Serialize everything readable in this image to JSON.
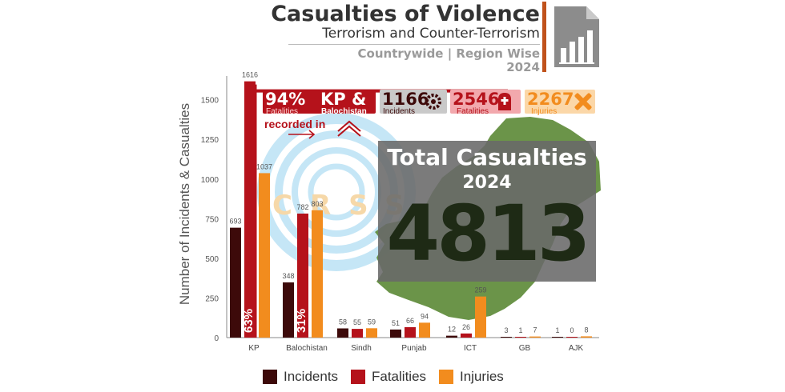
{
  "header": {
    "title": "Casualties of Violence",
    "subtitle": "Terrorism and Counter-Terrorism",
    "scope": "Countrywide | Region Wise",
    "year": "2024"
  },
  "colors": {
    "incidents": "#3d0a0a",
    "fatalities": "#b5121b",
    "injuries": "#f28c1e",
    "accent": "#c0521b",
    "map": "#5e8b3a",
    "watermark": "#7ec8ea"
  },
  "watermark_text": "CRSS",
  "highlights": {
    "share": {
      "value": "94%",
      "label": "Fatalities",
      "regions": "KP &",
      "regions2": "Balochistan",
      "note": "recorded in"
    },
    "incidents": {
      "value": "1166",
      "label": "Incidents"
    },
    "fatalities": {
      "value": "2546",
      "label": "Fatalities"
    },
    "injuries": {
      "value": "2267",
      "label": "Injuries"
    }
  },
  "total": {
    "title": "Total Casualties",
    "year": "2024",
    "value": "4813"
  },
  "chart_data": {
    "type": "bar",
    "categories": [
      "KP",
      "Balochistan",
      "Sindh",
      "Punjab",
      "ICT",
      "GB",
      "AJK"
    ],
    "series": [
      {
        "name": "Incidents",
        "values": [
          693,
          348,
          58,
          51,
          12,
          3,
          1
        ]
      },
      {
        "name": "Fatalities",
        "values": [
          1616,
          782,
          55,
          66,
          26,
          1,
          0
        ]
      },
      {
        "name": "Injuries",
        "values": [
          1037,
          803,
          59,
          94,
          259,
          7,
          8
        ]
      }
    ],
    "data_labels": [
      [
        "693",
        "348",
        "58",
        "51",
        "12",
        "3",
        "1"
      ],
      [
        "1616",
        "782",
        "55",
        "66",
        "26",
        "1",
        "0"
      ],
      [
        "1037",
        "803",
        "59",
        "94",
        "259",
        "7",
        "8"
      ]
    ],
    "bar_annotations": [
      {
        "category": "KP",
        "series": "Fatalities",
        "text": "63%"
      },
      {
        "category": "Balochistan",
        "series": "Fatalities",
        "text": "31%"
      }
    ],
    "ylabel": "Number of Incidents & Casualties",
    "ylim": [
      0,
      1700
    ],
    "yticks": [
      0,
      250,
      500,
      750,
      1000,
      1250,
      1500
    ],
    "grid": false,
    "legend_position": "bottom"
  }
}
